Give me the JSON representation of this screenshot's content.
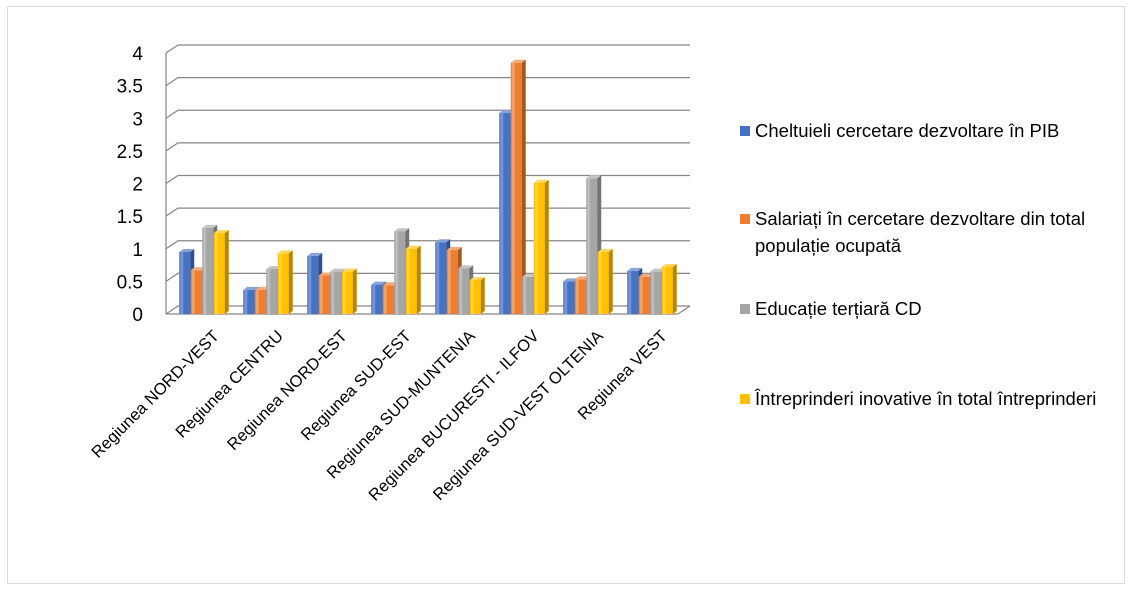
{
  "chart_data": {
    "type": "bar",
    "categories": [
      "Regiunea NORD-VEST",
      "Regiunea CENTRU",
      "Regiunea NORD-EST",
      "Regiunea SUD-EST",
      "Regiunea SUD-MUNTENIA",
      "Regiunea BUCURESTI - ILFOV",
      "Regiunea SUD-VEST OLTENIA",
      "Regiunea VEST"
    ],
    "series": [
      {
        "name": "Cheltuieli cercetare dezvoltare în PIB",
        "color": "#4472C4",
        "values": [
          0.95,
          0.37,
          0.89,
          0.45,
          1.1,
          3.08,
          0.5,
          0.66
        ]
      },
      {
        "name": "Salariați în cercetare dezvoltare din total populație ocupată",
        "color": "#ED7D31",
        "values": [
          0.67,
          0.37,
          0.59,
          0.44,
          0.98,
          3.85,
          0.53,
          0.57
        ]
      },
      {
        "name": "Educație terțiară CD",
        "color": "#A5A5A5",
        "values": [
          1.32,
          0.69,
          0.65,
          1.27,
          0.7,
          0.57,
          2.08,
          0.65
        ]
      },
      {
        "name": "Întreprinderi inovative în total întreprinderi",
        "color": "#FFC000",
        "values": [
          1.24,
          0.93,
          0.65,
          1.0,
          0.52,
          2.01,
          0.95,
          0.72
        ]
      }
    ],
    "yticks": [
      "0",
      "0.5",
      "1",
      "1.5",
      "2",
      "2.5",
      "3",
      "3.5",
      "4"
    ],
    "ylim": [
      0,
      4
    ],
    "grid": true,
    "legend_position": "right",
    "title": "",
    "xlabel": "",
    "ylabel": ""
  }
}
